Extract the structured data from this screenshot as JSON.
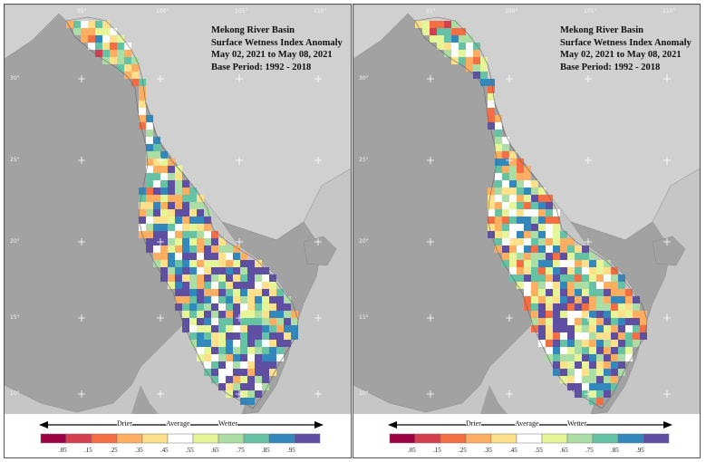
{
  "panels": [
    {
      "id": "left",
      "title_lines": [
        "Mekong River Basin",
        "Surface Wetness Index Anomaly",
        "May 02, 2021 to May 08, 2021",
        "Base Period: 1992 - 2018"
      ],
      "seed": 17,
      "bias": 0.6
    },
    {
      "id": "right",
      "title_lines": [
        "Mekong River Basin",
        "Surface Wetness Index Anomaly",
        "May 02, 2021 to May 08, 2021",
        "Base Period: 1992 - 2018"
      ],
      "seed": 91,
      "bias": 0.42
    }
  ],
  "legend": {
    "drier_label": "Drier",
    "average_label": "Average",
    "wetter_label": "Wetter",
    "tick_labels": [
      ".05",
      ".15",
      ".25",
      ".35",
      ".45",
      ".55",
      ".65",
      ".75",
      ".85",
      ".95"
    ],
    "colors": [
      "#9e0142",
      "#d53e4f",
      "#f46d43",
      "#fdae61",
      "#fee08b",
      "#ffffff",
      "#e6f598",
      "#abdda4",
      "#66c2a5",
      "#3288bd",
      "#5e4fa2"
    ]
  },
  "lon_labels": [
    "95°",
    "100°",
    "105°",
    "110°"
  ],
  "lat_labels": [
    "30°",
    "25°",
    "20°",
    "15°",
    "10°"
  ],
  "colors": {
    "ocean": "#c6c6c6",
    "land": "#a2a2a2",
    "neighbor_land": "#d0d0d0"
  }
}
